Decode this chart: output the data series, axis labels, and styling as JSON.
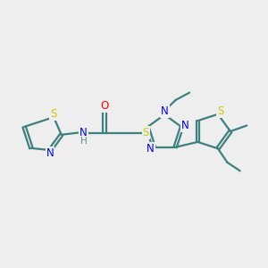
{
  "bg_color": "#eeeeee",
  "bond_color": "#3d8080",
  "N_color": "#0000ee",
  "S_color": "#cccc00",
  "O_color": "#ff0000",
  "H_color": "#5f9090",
  "line_width": 1.6,
  "font_size": 8.5,
  "xlim": [
    0,
    10
  ],
  "ylim": [
    0,
    10
  ]
}
